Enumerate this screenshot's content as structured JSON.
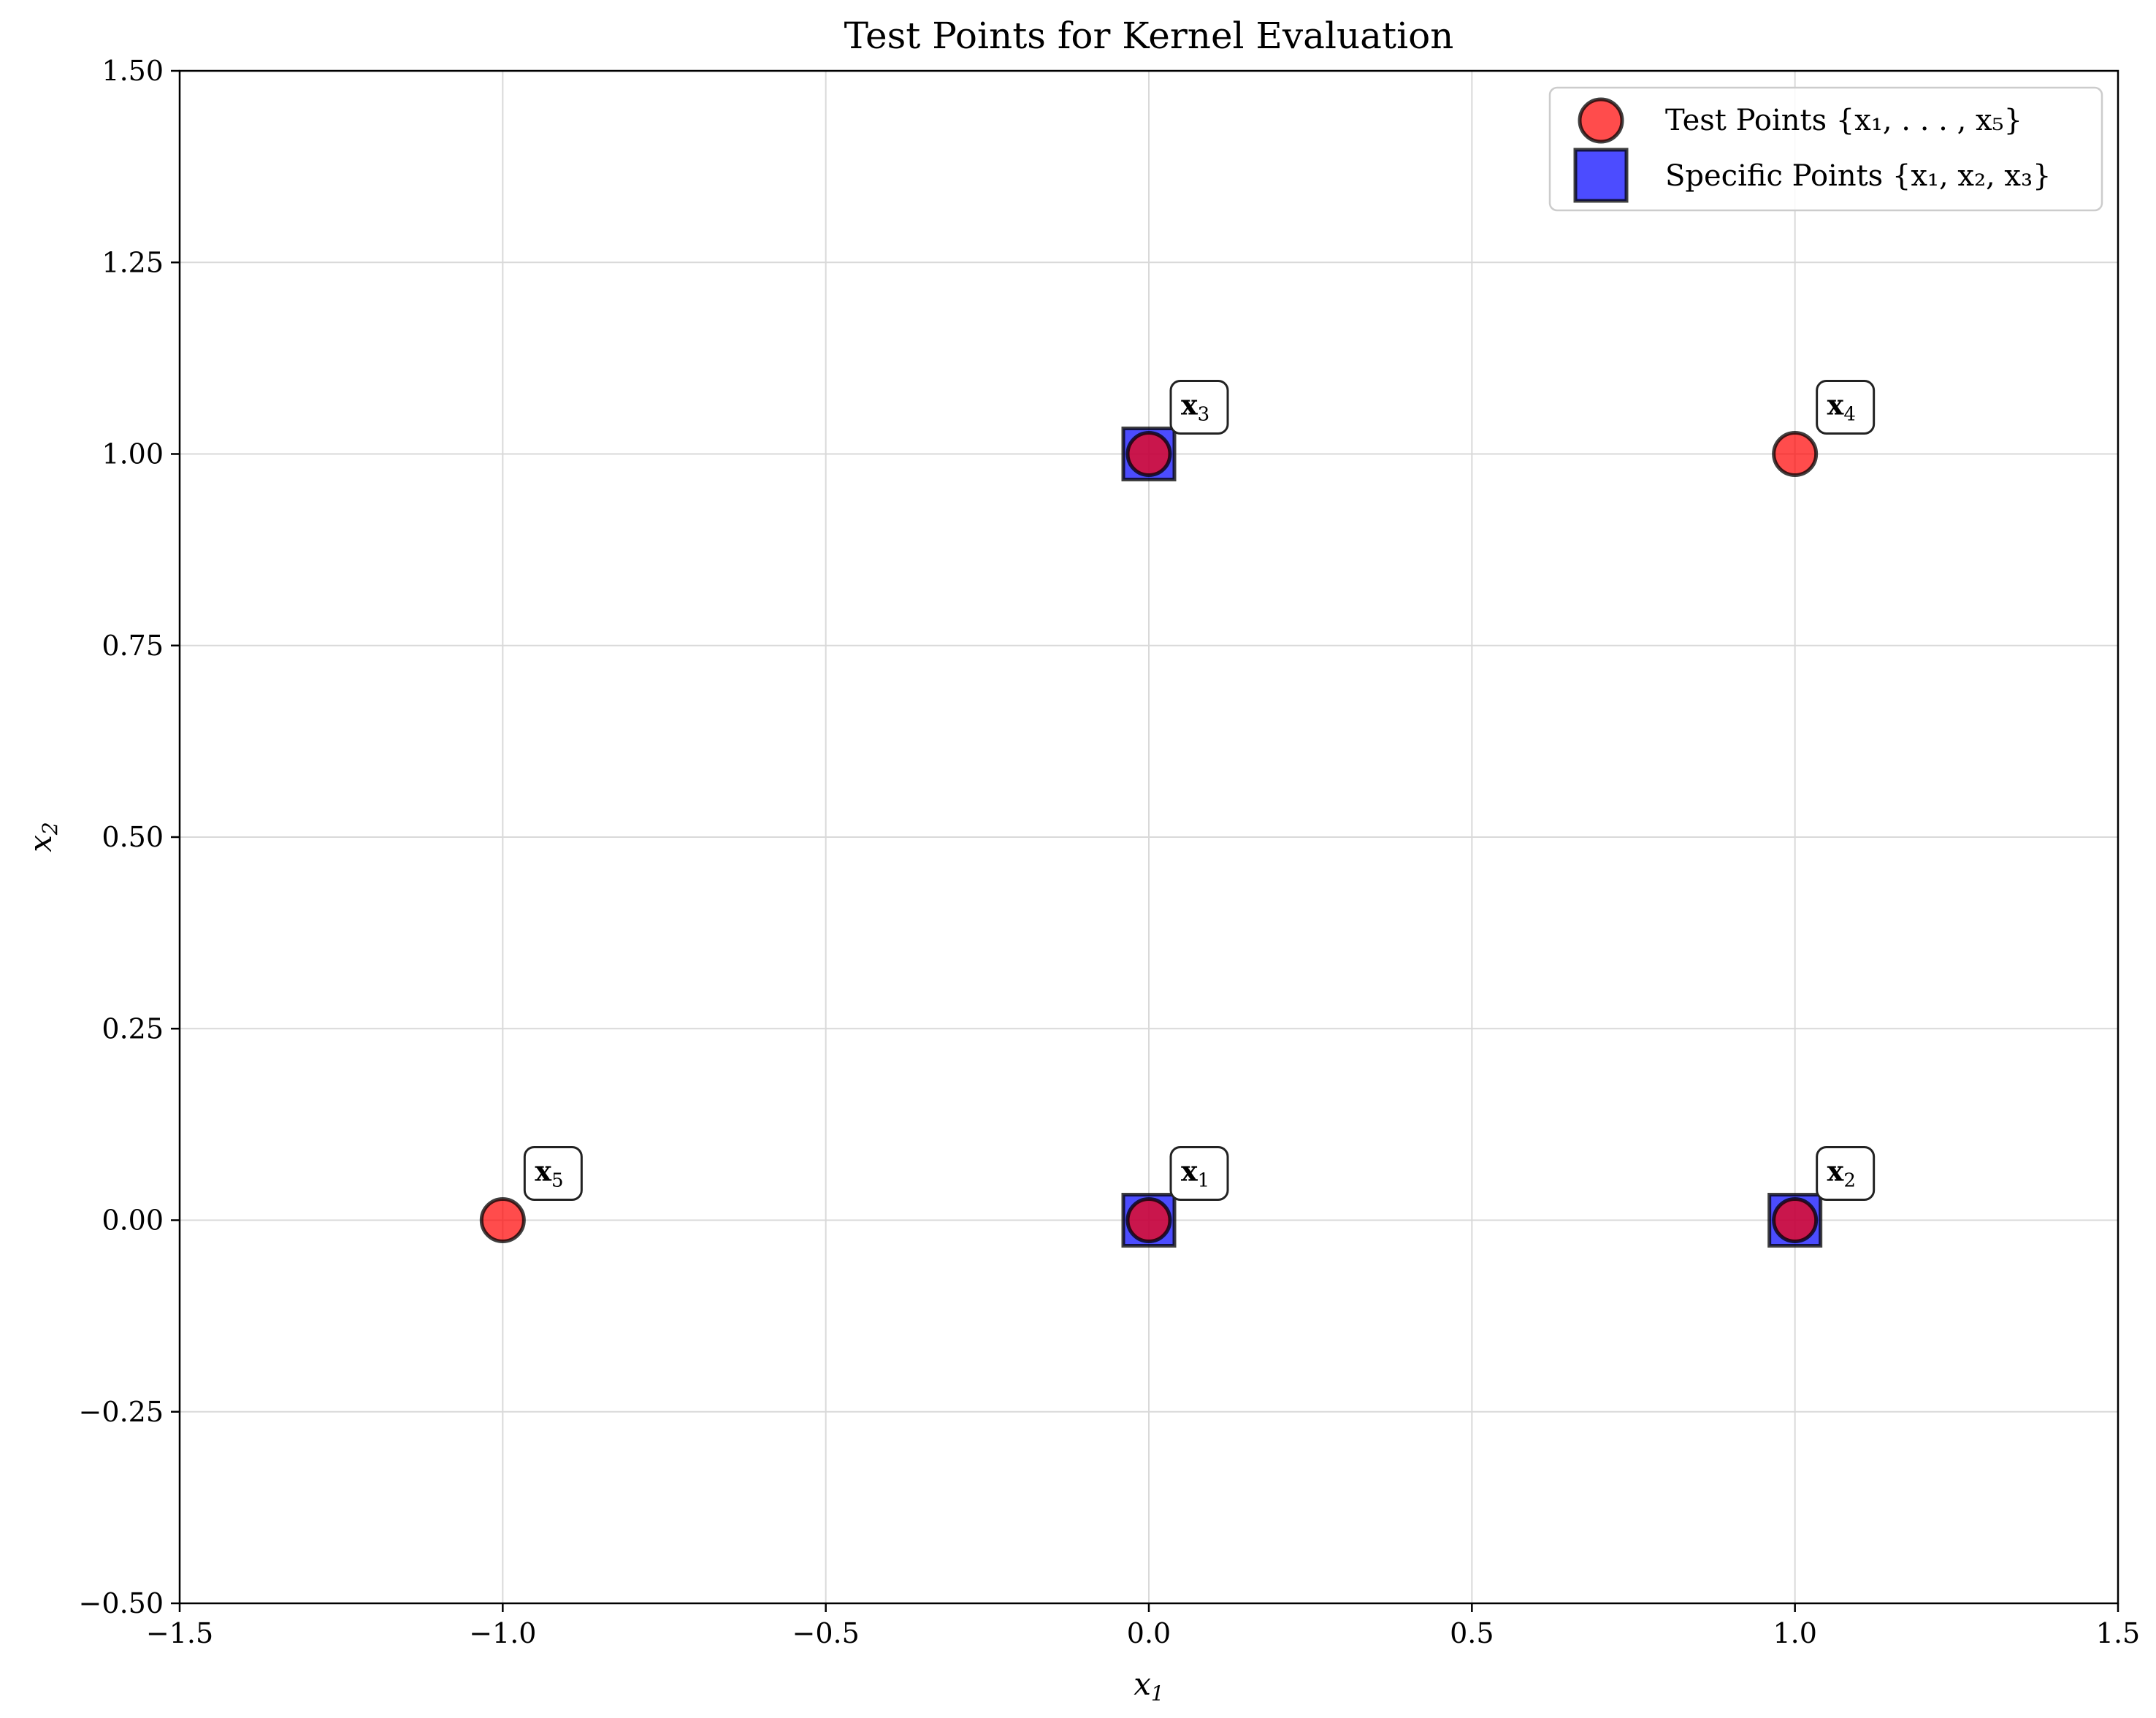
{
  "chart_data": {
    "type": "scatter",
    "title": "Test Points for Kernel Evaluation",
    "xlabel": "x",
    "xlabel_sub": "1",
    "ylabel": "x",
    "ylabel_sub": "2",
    "xlim": [
      -1.5,
      1.5
    ],
    "ylim": [
      -0.5,
      1.5
    ],
    "grid": true,
    "legend_position": "top-right",
    "x_ticks": [
      -1.5,
      -1.0,
      -0.5,
      0.0,
      0.5,
      1.0,
      1.5
    ],
    "x_tick_labels": [
      "−1.5",
      "−1.0",
      "−0.5",
      "0.0",
      "0.5",
      "1.0",
      "1.5"
    ],
    "y_ticks": [
      -0.5,
      -0.25,
      0.0,
      0.25,
      0.5,
      0.75,
      1.0,
      1.25,
      1.5
    ],
    "y_tick_labels": [
      "−0.50",
      "−0.25",
      "0.00",
      "0.25",
      "0.50",
      "0.75",
      "1.00",
      "1.25",
      "1.50"
    ],
    "series": [
      {
        "name": "Test Points {x₁, . . . , x₅}",
        "marker": "circle",
        "color": "#ff0000",
        "points": [
          {
            "x": 0,
            "y": 0
          },
          {
            "x": 1,
            "y": 0
          },
          {
            "x": 0,
            "y": 1
          },
          {
            "x": 1,
            "y": 1
          },
          {
            "x": -1,
            "y": 0
          }
        ]
      },
      {
        "name": "Specific Points {x₁, x₂, x₃}",
        "marker": "square",
        "color": "#0000ff",
        "points": [
          {
            "x": 0,
            "y": 0
          },
          {
            "x": 1,
            "y": 0
          },
          {
            "x": 0,
            "y": 1
          }
        ]
      }
    ],
    "annotations": [
      {
        "label": "x",
        "sub": "1",
        "x": 0,
        "y": 0
      },
      {
        "label": "x",
        "sub": "2",
        "x": 1,
        "y": 0
      },
      {
        "label": "x",
        "sub": "3",
        "x": 0,
        "y": 1
      },
      {
        "label": "x",
        "sub": "4",
        "x": 1,
        "y": 1
      },
      {
        "label": "x",
        "sub": "5",
        "x": -1,
        "y": 0
      }
    ]
  }
}
